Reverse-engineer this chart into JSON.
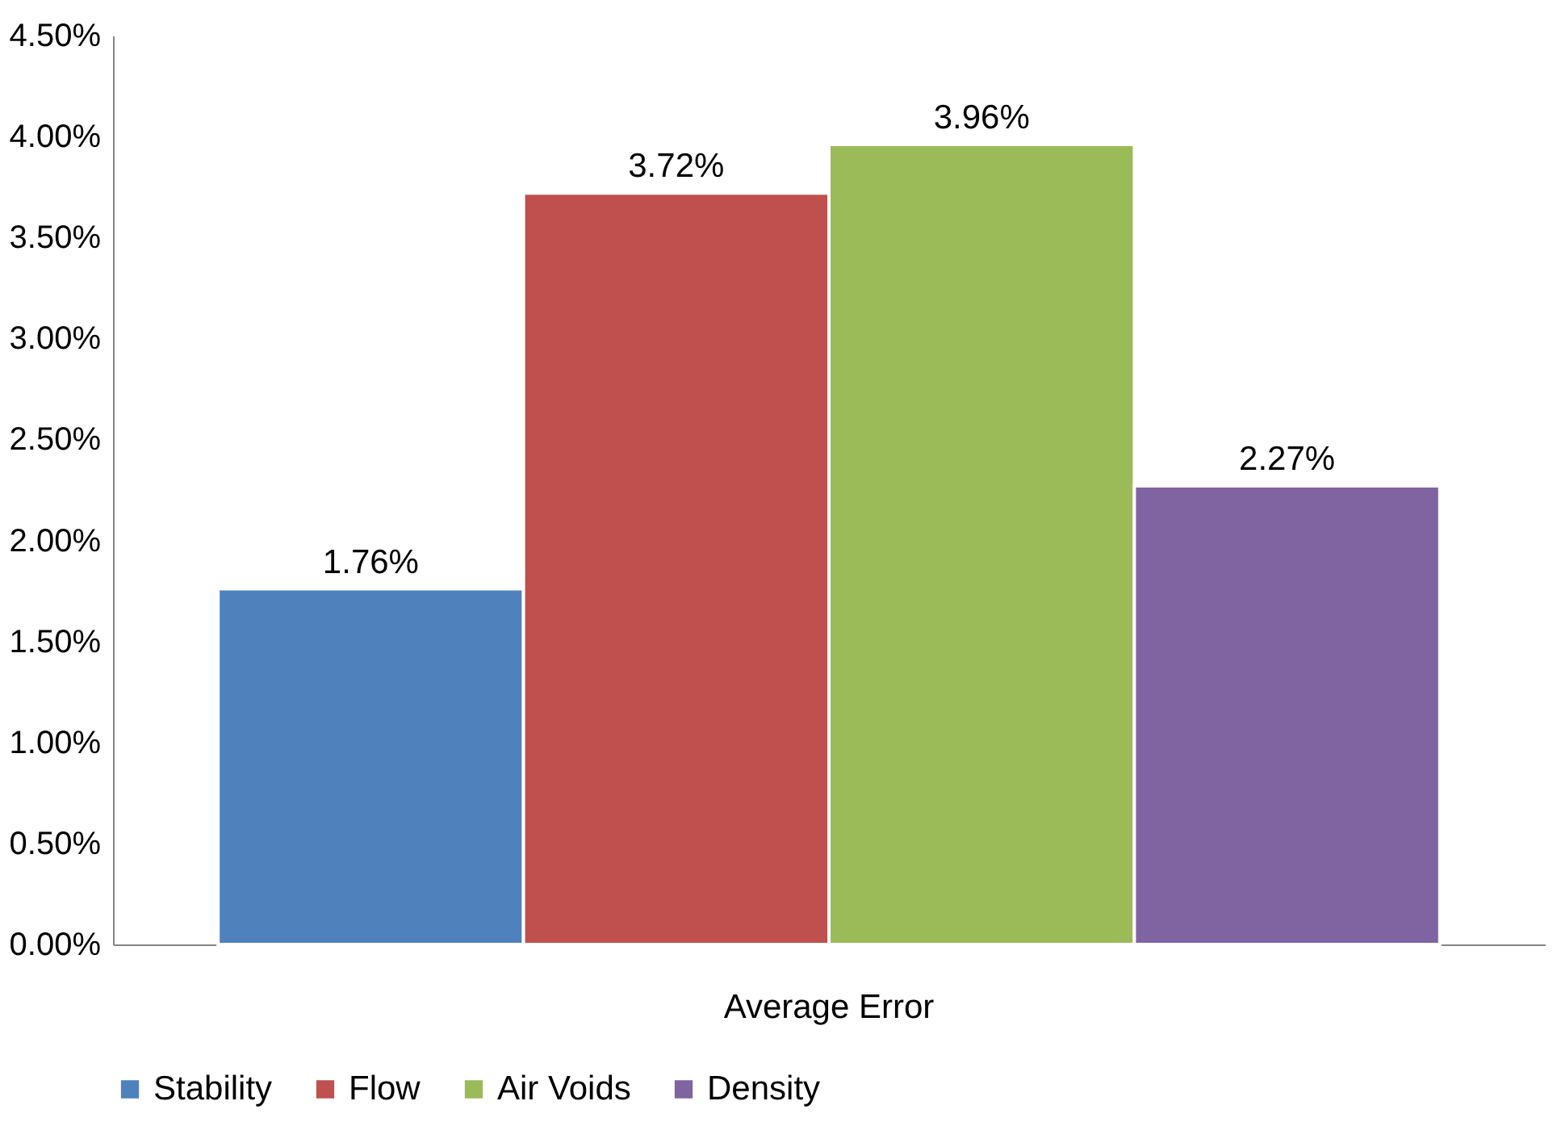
{
  "chart_data": {
    "type": "bar",
    "categories": [
      "Average Error"
    ],
    "series": [
      {
        "name": "Stability",
        "color": "#4f81bd",
        "values": [
          1.76
        ],
        "value_labels": [
          "1.76%"
        ]
      },
      {
        "name": "Flow",
        "color": "#c0504d",
        "values": [
          3.72
        ],
        "value_labels": [
          "3.72%"
        ]
      },
      {
        "name": "Air Voids",
        "color": "#9bbb59",
        "values": [
          3.96
        ],
        "value_labels": [
          "3.96%"
        ]
      },
      {
        "name": "Density",
        "color": "#8064a2",
        "values": [
          2.27
        ],
        "value_labels": [
          "2.27%"
        ]
      }
    ],
    "ylim": [
      0,
      4.5
    ],
    "yticks": [
      {
        "value": 0,
        "label": "0.00%"
      },
      {
        "value": 0.5,
        "label": "0.50%"
      },
      {
        "value": 1,
        "label": "1.00%"
      },
      {
        "value": 1.5,
        "label": "1.50%"
      },
      {
        "value": 2,
        "label": "2.00%"
      },
      {
        "value": 2.5,
        "label": "2.50%"
      },
      {
        "value": 3,
        "label": "3.00%"
      },
      {
        "value": 3.5,
        "label": "3.50%"
      },
      {
        "value": 4,
        "label": "4.00%"
      },
      {
        "value": 4.5,
        "label": "4.50%"
      }
    ],
    "grid": false,
    "legend": "bottom"
  }
}
